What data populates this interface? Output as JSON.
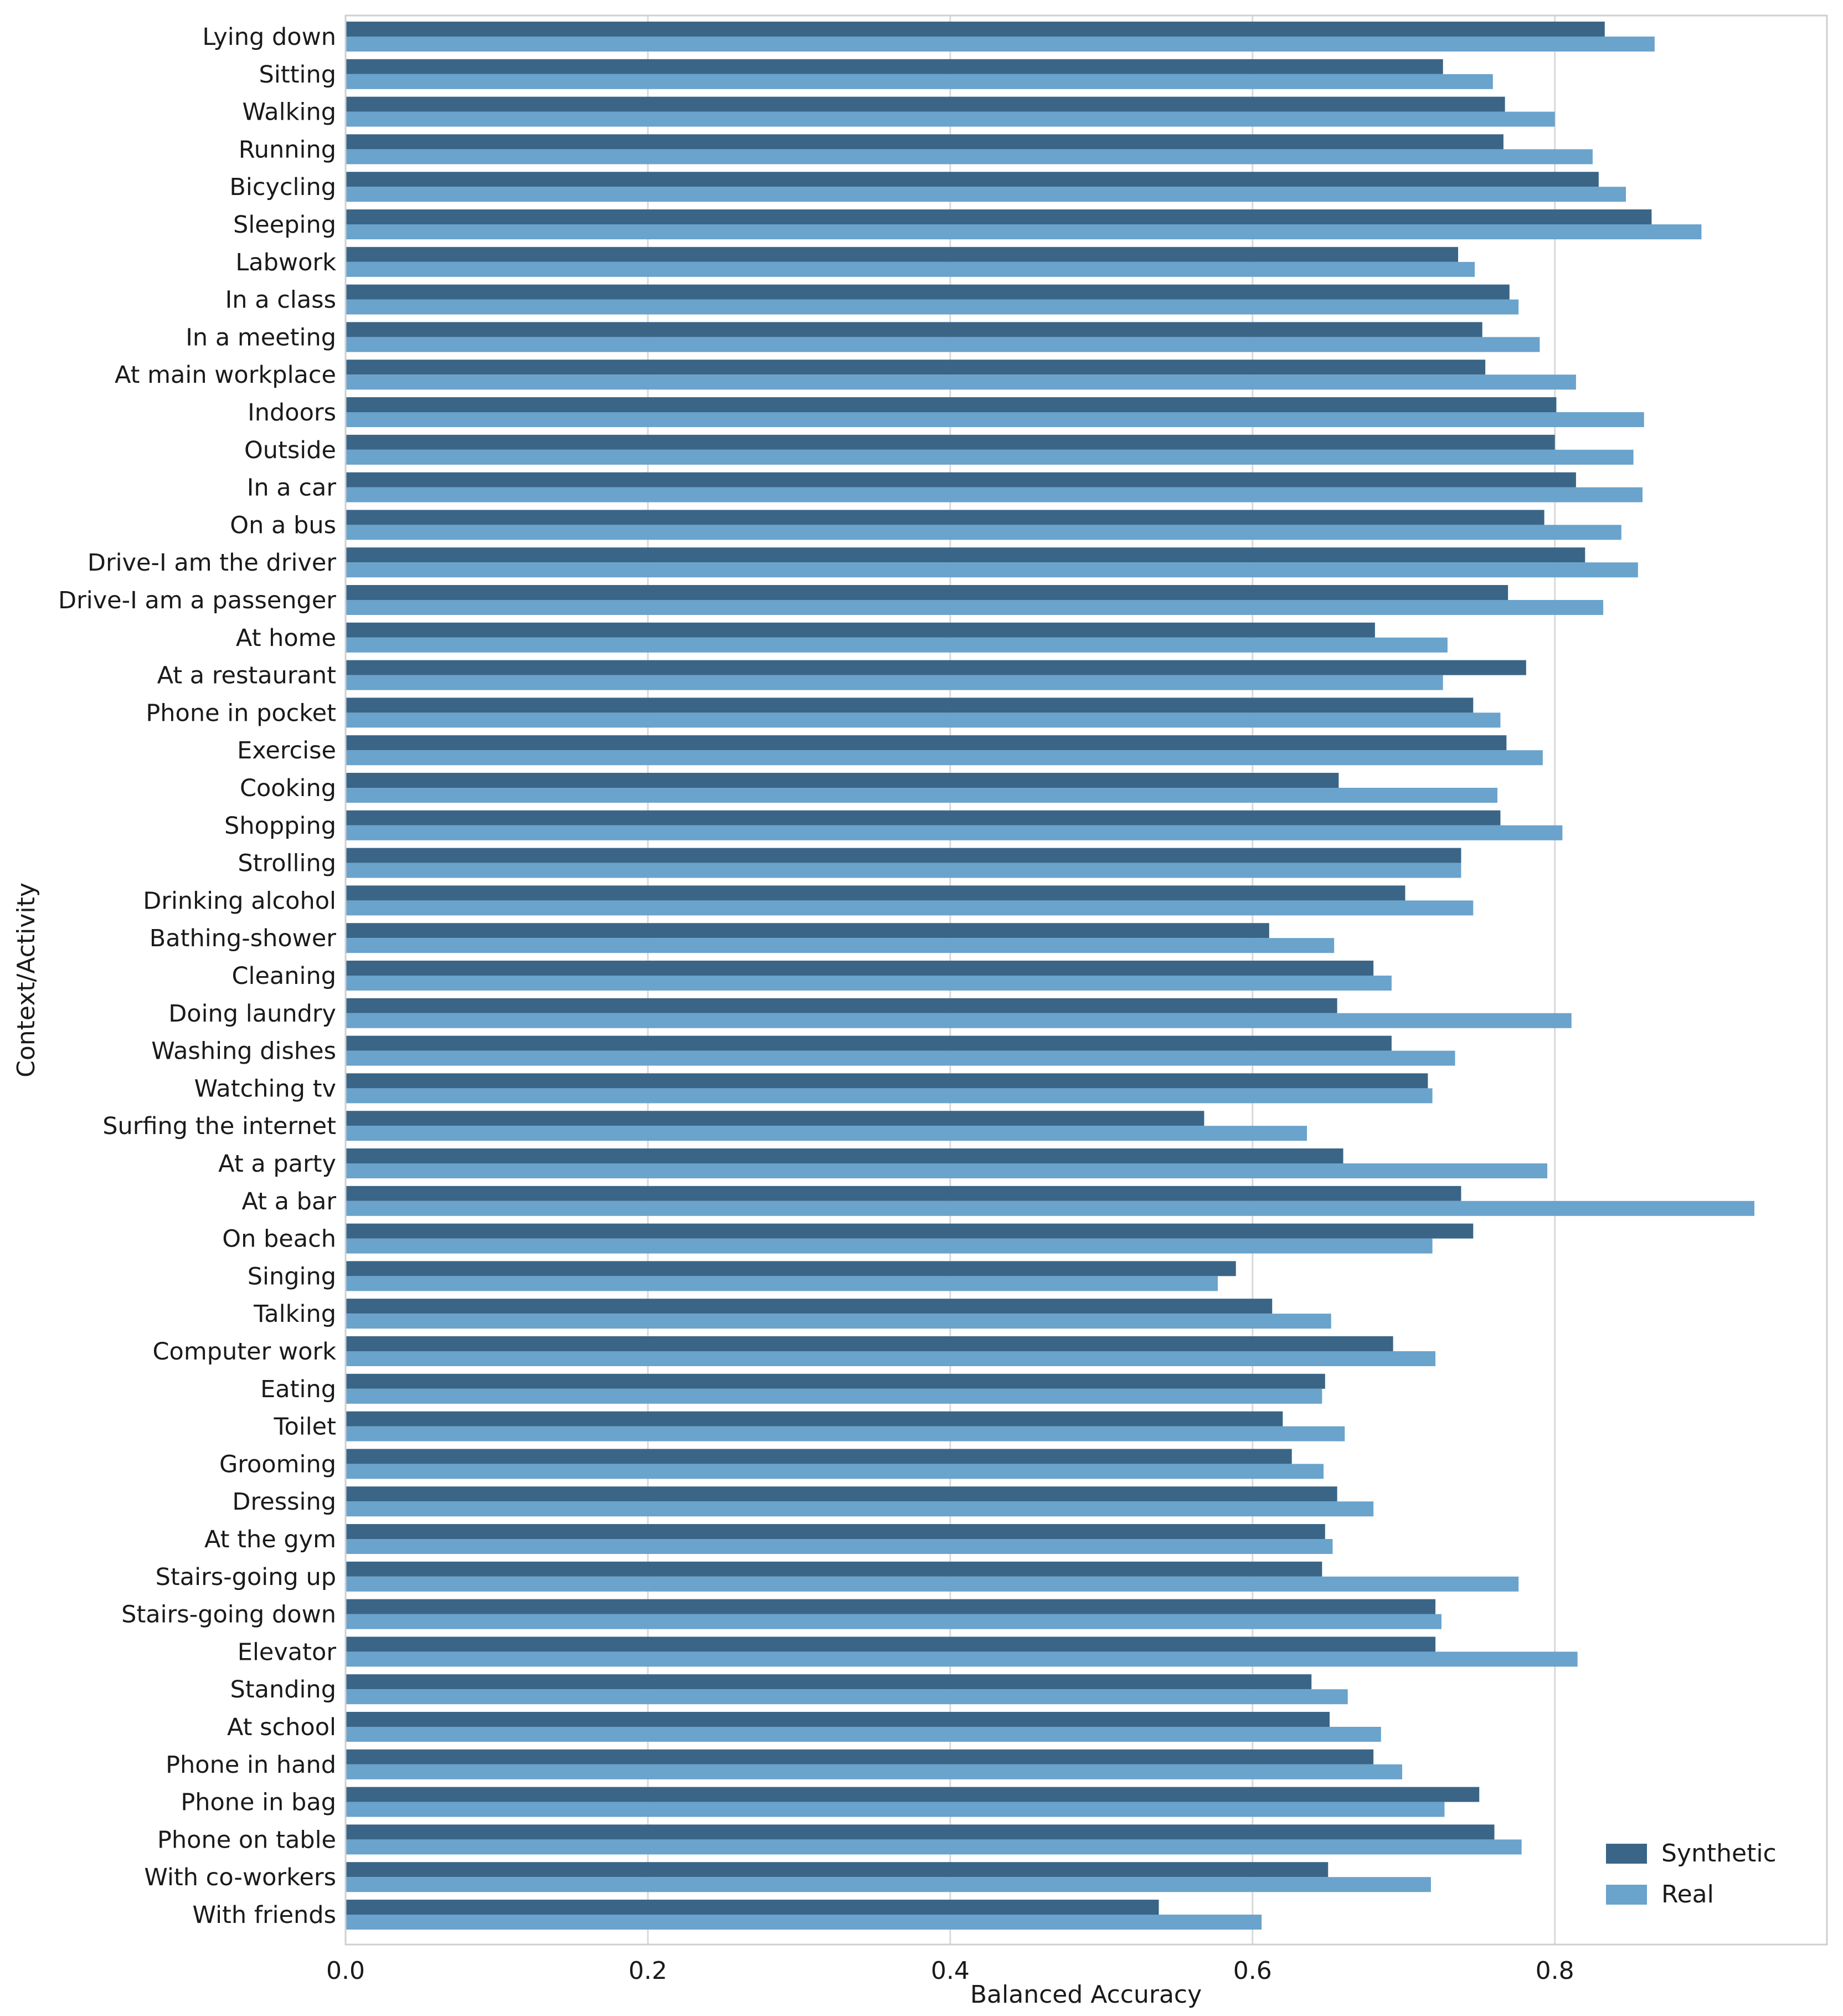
{
  "chart_data": {
    "type": "bar",
    "orientation": "horizontal",
    "title": "",
    "xlabel": "Balanced Accuracy",
    "ylabel": "Context/Activity",
    "xlim": [
      0.0,
      0.98
    ],
    "xticks": [
      0.0,
      0.2,
      0.4,
      0.6,
      0.8
    ],
    "xtick_labels": [
      "0.0",
      "0.2",
      "0.4",
      "0.6",
      "0.8"
    ],
    "grid": true,
    "legend_position": "bottom-right",
    "categories": [
      "Lying down",
      "Sitting",
      "Walking",
      "Running",
      "Bicycling",
      "Sleeping",
      "Labwork",
      "In a class",
      "In a meeting",
      "At main workplace",
      "Indoors",
      "Outside",
      "In a car",
      "On a bus",
      "Drive-I am the driver",
      "Drive-I am a passenger",
      "At home",
      "At a restaurant",
      "Phone in pocket",
      "Exercise",
      "Cooking",
      "Shopping",
      "Strolling",
      "Drinking alcohol",
      "Bathing-shower",
      "Cleaning",
      "Doing laundry",
      "Washing dishes",
      "Watching tv",
      "Surfing the internet",
      "At a party",
      "At a bar",
      "On beach",
      "Singing",
      "Talking",
      "Computer work",
      "Eating",
      "Toilet",
      "Grooming",
      "Dressing",
      "At the gym",
      "Stairs-going up",
      "Stairs-going down",
      "Elevator",
      "Standing",
      "At school",
      "Phone in hand",
      "Phone in bag",
      "Phone on table",
      "With co-workers",
      "With friends"
    ],
    "series": [
      {
        "name": "Synthetic",
        "color": "#3a6587",
        "values": [
          0.833,
          0.726,
          0.767,
          0.766,
          0.829,
          0.864,
          0.736,
          0.77,
          0.752,
          0.754,
          0.801,
          0.8,
          0.814,
          0.793,
          0.82,
          0.769,
          0.681,
          0.781,
          0.746,
          0.768,
          0.657,
          0.764,
          0.738,
          0.701,
          0.611,
          0.68,
          0.656,
          0.692,
          0.716,
          0.568,
          0.66,
          0.738,
          0.746,
          0.589,
          0.613,
          0.693,
          0.648,
          0.62,
          0.626,
          0.656,
          0.648,
          0.646,
          0.721,
          0.721,
          0.639,
          0.651,
          0.68,
          0.75,
          0.76,
          0.65,
          0.538
        ]
      },
      {
        "name": "Real",
        "color": "#6aa3cc",
        "values": [
          0.866,
          0.759,
          0.8,
          0.825,
          0.847,
          0.897,
          0.747,
          0.776,
          0.79,
          0.814,
          0.859,
          0.852,
          0.858,
          0.844,
          0.855,
          0.832,
          0.729,
          0.726,
          0.764,
          0.792,
          0.762,
          0.805,
          0.738,
          0.746,
          0.654,
          0.692,
          0.811,
          0.734,
          0.719,
          0.636,
          0.795,
          0.932,
          0.719,
          0.577,
          0.652,
          0.721,
          0.646,
          0.661,
          0.647,
          0.68,
          0.653,
          0.776,
          0.725,
          0.815,
          0.663,
          0.685,
          0.699,
          0.727,
          0.778,
          0.718,
          0.606
        ]
      }
    ]
  }
}
